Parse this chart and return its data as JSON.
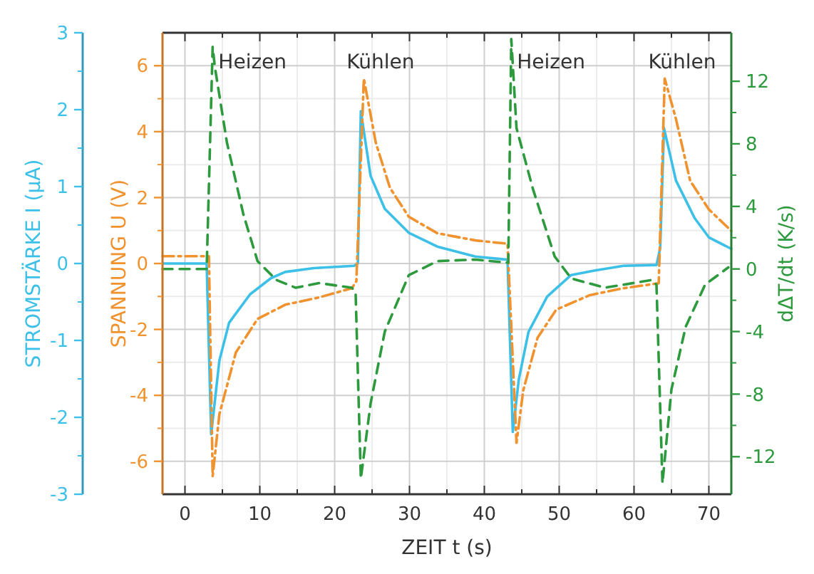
{
  "chart_data": {
    "type": "line",
    "xlabel": "ZEIT t (s)",
    "ylabel": "SPANNUNG U (V)",
    "y2label": "dΔT/dt (K/s)",
    "y3label": "STROMSTÄRKE I (µA)",
    "xlim": [
      -3,
      73
    ],
    "xticks": [
      0,
      10,
      20,
      30,
      40,
      50,
      60,
      70
    ],
    "ylim": [
      -7,
      7
    ],
    "yticks": [
      -6,
      -4,
      -2,
      0,
      2,
      4,
      6
    ],
    "y2lim": [
      -14.4,
      15.1
    ],
    "y2ticks": [
      -12,
      -8,
      -4,
      0,
      4,
      8,
      12
    ],
    "y3lim": [
      -3,
      3
    ],
    "y3ticks": [
      -3,
      -2,
      -1,
      0,
      1,
      2,
      3
    ],
    "grid": true,
    "annotations": [
      "Heizen",
      "Kühlen",
      "Heizen",
      "Kühlen"
    ],
    "series": [
      {
        "axis": "y3",
        "color": "#3cc0e8",
        "line_style": "solid",
        "x": [
          -3,
          2.9,
          3.5,
          4.6,
          5.9,
          8.7,
          11.5,
          13.4,
          17.2,
          22.6,
          23.1,
          23.5,
          24.8,
          26.7,
          29.9,
          33.7,
          38.8,
          43.1,
          43.8,
          44.6,
          45.9,
          48.4,
          51.6,
          54.8,
          58.6,
          63.0,
          63.5,
          64.0,
          65.6,
          68.1,
          70.0,
          73.0
        ],
        "values": [
          0,
          0,
          -2.22,
          -1.26,
          -0.77,
          -0.4,
          -0.19,
          -0.11,
          -0.06,
          -0.03,
          0.0,
          1.98,
          1.14,
          0.71,
          0.4,
          0.22,
          0.09,
          0.05,
          -2.19,
          -1.51,
          -0.89,
          -0.43,
          -0.15,
          -0.09,
          -0.03,
          -0.02,
          0.2,
          1.76,
          1.08,
          0.59,
          0.34,
          0.19
        ]
      },
      {
        "color": "#f0922e",
        "line_style": "dashdot",
        "x": [
          -3,
          3.2,
          3.7,
          4.6,
          6.8,
          9.7,
          13.4,
          17.9,
          22.3,
          22.9,
          23.9,
          25.5,
          27.4,
          29.9,
          33.7,
          38.8,
          43.1,
          44.3,
          45.2,
          47.1,
          49.6,
          54.1,
          58.6,
          63.3,
          64.1,
          65.6,
          67.5,
          70.0,
          73.0
        ],
        "values": [
          0.22,
          0.22,
          -6.45,
          -4.57,
          -2.7,
          -1.68,
          -1.25,
          -1.03,
          -0.75,
          -0.54,
          5.61,
          3.66,
          2.29,
          1.42,
          0.92,
          0.7,
          0.6,
          -5.44,
          -3.85,
          -2.26,
          -1.4,
          -0.96,
          -0.75,
          -0.6,
          5.61,
          4.39,
          2.51,
          1.64,
          0.99
        ]
      },
      {
        "axis": "y2",
        "color": "#2e9a3e",
        "line_style": "dashed",
        "x": [
          -3,
          2.9,
          3.7,
          4.0,
          5.6,
          7.8,
          9.7,
          12.2,
          14.8,
          17.9,
          22.3,
          22.8,
          23.5,
          24.8,
          26.7,
          29.9,
          33.7,
          38.8,
          43.2,
          43.6,
          44.3,
          46.5,
          49.4,
          51.6,
          56.1,
          62.4,
          63.0,
          63.8,
          65.0,
          66.9,
          69.5,
          72.6
        ],
        "values": [
          0,
          0,
          14.2,
          12.9,
          8.1,
          3.5,
          0.5,
          -0.7,
          -1.2,
          -0.9,
          -1.2,
          -1.5,
          -13.4,
          -8.6,
          -4.0,
          -0.4,
          0.5,
          0.6,
          0.4,
          14.7,
          9.0,
          5.1,
          0.8,
          -0.6,
          -1.2,
          -0.7,
          -1.0,
          -13.7,
          -7.7,
          -3.7,
          -1.0,
          0.1
        ]
      }
    ]
  }
}
